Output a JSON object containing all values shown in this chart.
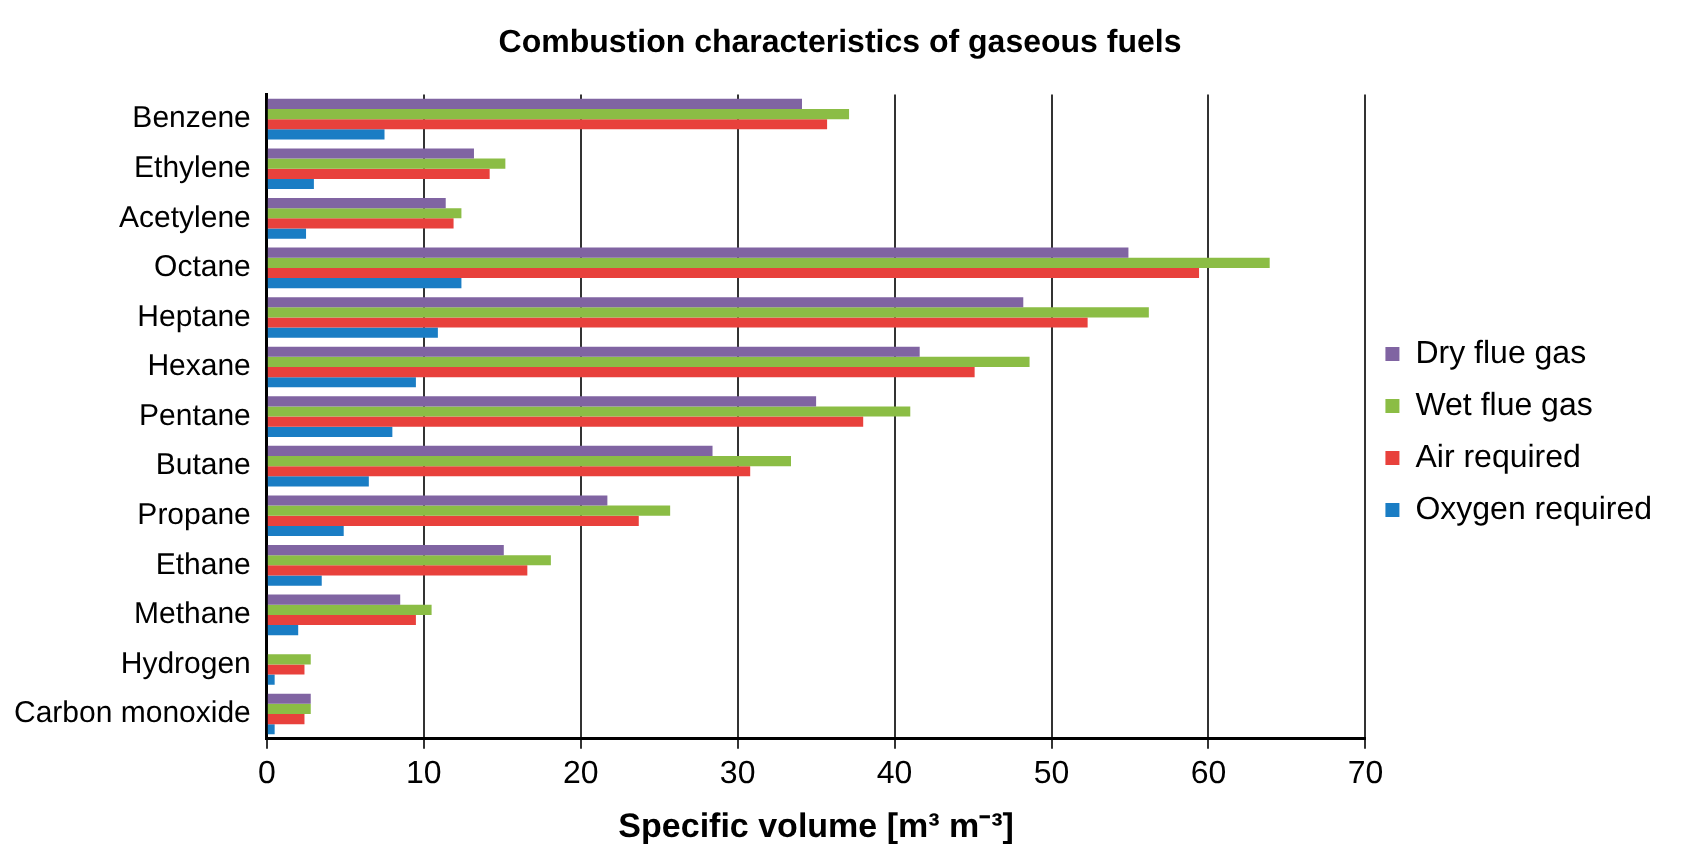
{
  "chart_data": {
    "type": "bar",
    "orientation": "horizontal",
    "title": "Combustion characteristics of gaseous fuels",
    "xlabel": "Specific volume [m³ m⁻³]",
    "categories": [
      "Benzene",
      "Ethylene",
      "Acetylene",
      "Octane",
      "Heptane",
      "Hexane",
      "Pentane",
      "Butane",
      "Propane",
      "Ethane",
      "Methane",
      "Hydrogen",
      "Carbon monoxide"
    ],
    "series": [
      {
        "name": "Dry flue gas",
        "color": "#8064a2",
        "values": [
          34.1,
          13.2,
          11.4,
          54.9,
          48.2,
          41.6,
          35.0,
          28.4,
          21.7,
          15.1,
          8.5,
          0,
          2.8
        ]
      },
      {
        "name": "Wet flue gas",
        "color": "#8bbd45",
        "values": [
          37.1,
          15.2,
          12.4,
          63.9,
          56.2,
          48.6,
          41.0,
          33.4,
          25.7,
          18.1,
          10.5,
          2.8,
          2.8
        ]
      },
      {
        "name": "Air required",
        "color": "#e8413c",
        "values": [
          35.7,
          14.2,
          11.9,
          59.4,
          52.3,
          45.1,
          38.0,
          30.8,
          23.7,
          16.6,
          9.5,
          2.4,
          2.4
        ]
      },
      {
        "name": "Oxygen required",
        "color": "#1a7dc4",
        "values": [
          7.5,
          3.0,
          2.5,
          12.4,
          10.9,
          9.5,
          8.0,
          6.5,
          4.9,
          3.5,
          2.0,
          0.5,
          0.5
        ]
      }
    ],
    "xlim": [
      0,
      70
    ],
    "xticks": [
      0,
      10,
      20,
      30,
      40,
      50,
      60,
      70
    ],
    "grid": "x",
    "legend": "right"
  }
}
